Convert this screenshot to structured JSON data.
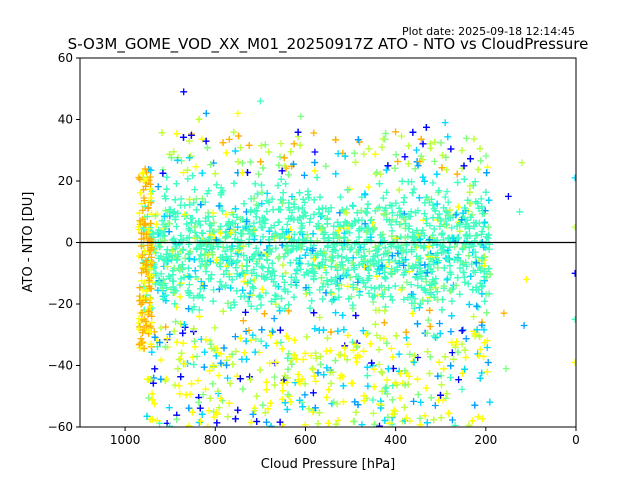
{
  "plot_date": "Plot date: 2025-09-18 12:14:45",
  "chart_data": {
    "type": "scatter",
    "title": "S-O3M_GOME_VOD_XX_M01_20250917Z ATO - NTO vs CloudPressure",
    "xlabel": "Cloud Pressure [hPa]",
    "ylabel": "ATO - NTO [DU]",
    "xlim": [
      1100,
      0
    ],
    "ylim": [
      -60,
      60
    ],
    "x_inverted": true,
    "x_ticks": [
      1000,
      800,
      600,
      400,
      200,
      0
    ],
    "y_ticks": [
      -60,
      -40,
      -20,
      0,
      20,
      40,
      60
    ],
    "reference_line_y": 0,
    "marker": "+",
    "grid": false,
    "colors": [
      "#0000ff",
      "#00a0ff",
      "#00d8ff",
      "#40ffc0",
      "#80ff80",
      "#c0ff40",
      "#ffff00",
      "#ffb000"
    ],
    "main_cloud": {
      "x_range": [
        960,
        190
      ],
      "y_core_range": [
        -25,
        25
      ],
      "y_center": -2,
      "y_spread_sd": 11,
      "y_extremes": [
        -60,
        49
      ]
    },
    "outliers": [
      {
        "x": 870,
        "y": 49
      },
      {
        "x": 700,
        "y": 46
      },
      {
        "x": 750,
        "y": 42
      },
      {
        "x": 820,
        "y": 42
      },
      {
        "x": 610,
        "y": 41
      },
      {
        "x": 400,
        "y": 36
      },
      {
        "x": 290,
        "y": 39
      },
      {
        "x": 120,
        "y": 26
      },
      {
        "x": 150,
        "y": 15
      },
      {
        "x": 125,
        "y": 10
      },
      {
        "x": 110,
        "y": -12
      },
      {
        "x": 115,
        "y": -27
      },
      {
        "x": 155,
        "y": -41
      },
      {
        "x": 160,
        "y": -23
      },
      {
        "x": 2,
        "y": 21
      },
      {
        "x": 2,
        "y": 5
      },
      {
        "x": 2,
        "y": -10
      },
      {
        "x": 2,
        "y": -25
      },
      {
        "x": 2,
        "y": -39
      }
    ]
  }
}
